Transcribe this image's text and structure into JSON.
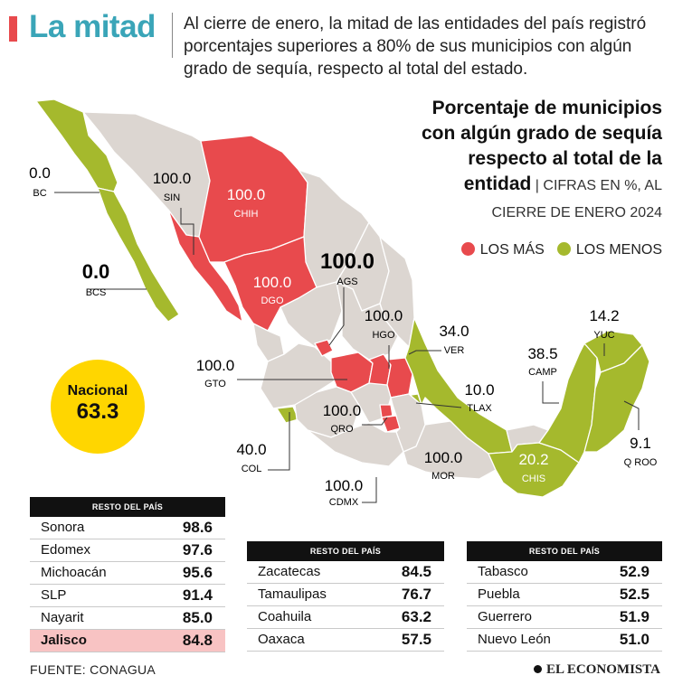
{
  "headline": "La mitad",
  "intro": "Al cierre de enero, la mitad de las entidades del país registró porcentajes superiores a 80% de sus municipios con algún grado de sequía, respecto al total del estado.",
  "chart_title": {
    "main": "Porcentaje de municipios con algún grado de sequía respecto al total de la entidad",
    "separator": " | ",
    "units": "CIFRAS EN %, AL CIERRE DE ENERO 2024"
  },
  "legend": {
    "most": {
      "label": "LOS MÁS",
      "color": "#e84a4d"
    },
    "least": {
      "label": "LOS MENOS",
      "color": "#a5b92d"
    }
  },
  "national": {
    "label": "Nacional",
    "value": "63.3"
  },
  "map_labels": {
    "bc": {
      "value": "0.0",
      "code": "BC"
    },
    "bcs": {
      "value": "0.0",
      "code": "BCS"
    },
    "sin": {
      "value": "100.0",
      "code": "SIN"
    },
    "chih": {
      "value": "100.0",
      "code": "CHIH"
    },
    "dgo": {
      "value": "100.0",
      "code": "DGO"
    },
    "ags": {
      "value": "100.0",
      "code": "AGS"
    },
    "hgo": {
      "value": "100.0",
      "code": "HGO"
    },
    "ver": {
      "value": "34.0",
      "code": "VER"
    },
    "gto": {
      "value": "100.0",
      "code": "GTO"
    },
    "qro": {
      "value": "100.0",
      "code": "QRO"
    },
    "tlax": {
      "value": "10.0",
      "code": "TLAX"
    },
    "col": {
      "value": "40.0",
      "code": "COL"
    },
    "mor": {
      "value": "100.0",
      "code": "MOR"
    },
    "cdmx": {
      "value": "100.0",
      "code": "CDMX"
    },
    "chis": {
      "value": "20.2",
      "code": "CHIS"
    },
    "camp": {
      "value": "38.5",
      "code": "CAMP"
    },
    "yuc": {
      "value": "14.2",
      "code": "YUC"
    },
    "qroo": {
      "value": "9.1",
      "code": "Q ROO"
    }
  },
  "tables": [
    {
      "header": "RESTO DEL PAÍS",
      "rows": [
        {
          "name": "Sonora",
          "value": "98.6"
        },
        {
          "name": "Edomex",
          "value": "97.6"
        },
        {
          "name": "Michoacán",
          "value": "95.6"
        },
        {
          "name": "SLP",
          "value": "91.4"
        },
        {
          "name": "Nayarit",
          "value": "85.0"
        },
        {
          "name": "Jalisco",
          "value": "84.8"
        }
      ]
    },
    {
      "header": "RESTO DEL PAÍS",
      "rows": [
        {
          "name": "Zacatecas",
          "value": "84.5"
        },
        {
          "name": "Tamaulipas",
          "value": "76.7"
        },
        {
          "name": "Coahuila",
          "value": "63.2"
        },
        {
          "name": "Oaxaca",
          "value": "57.5"
        }
      ]
    },
    {
      "header": "RESTO DEL PAÍS",
      "rows": [
        {
          "name": "Tabasco",
          "value": "52.9"
        },
        {
          "name": "Puebla",
          "value": "52.5"
        },
        {
          "name": "Guerrero",
          "value": "51.9"
        },
        {
          "name": "Nuevo León",
          "value": "51.0"
        }
      ]
    }
  ],
  "footer": {
    "source": "FUENTE: CONAGUA",
    "brand": "EL ECONOMISTA"
  }
}
